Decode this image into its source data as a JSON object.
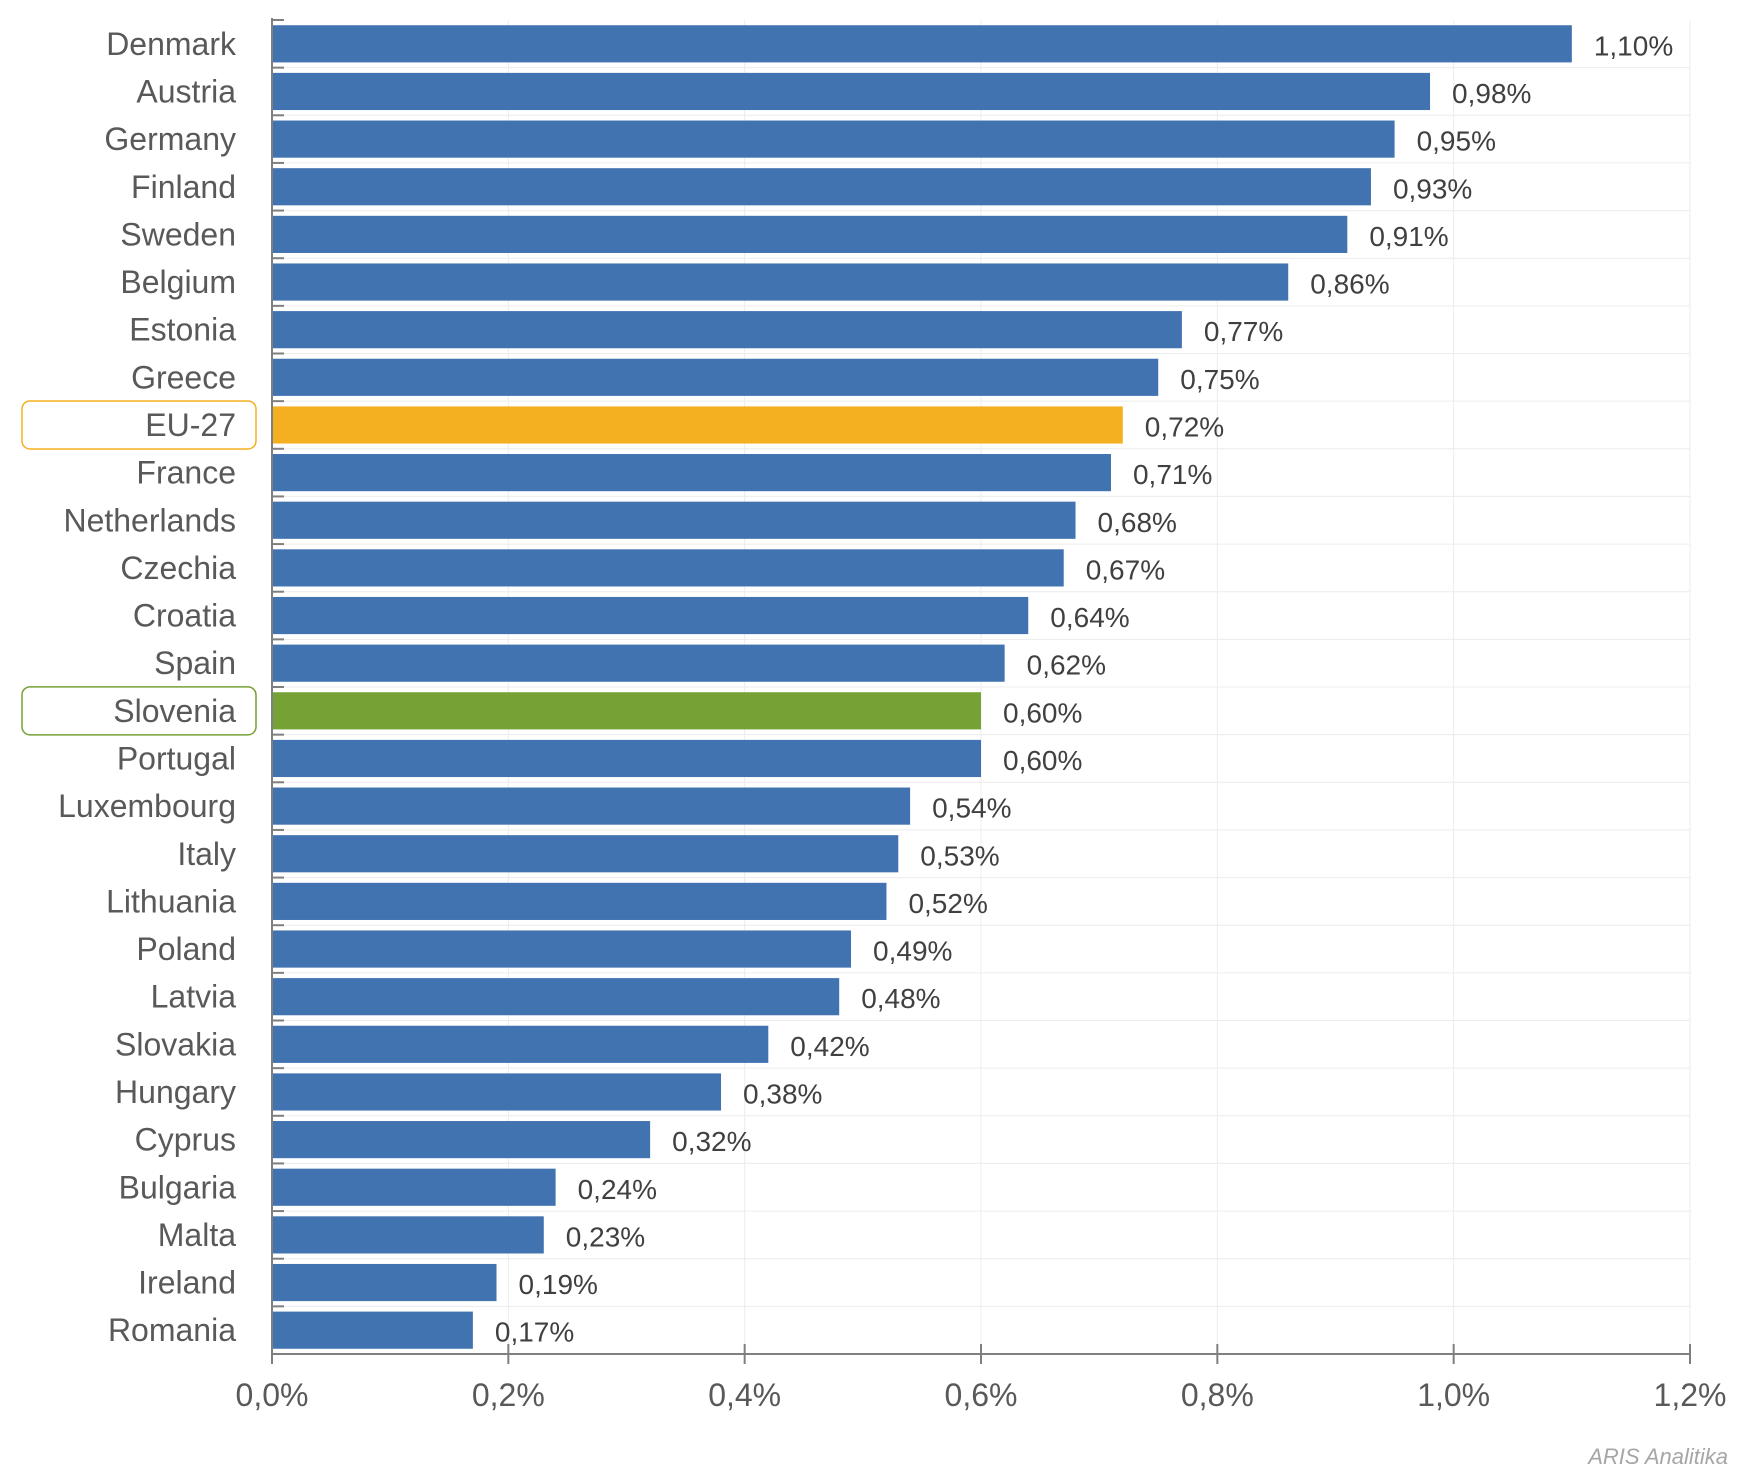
{
  "chart_data": {
    "type": "bar",
    "orientation": "horizontal",
    "categories": [
      "Denmark",
      "Austria",
      "Germany",
      "Finland",
      "Sweden",
      "Belgium",
      "Estonia",
      "Greece",
      "EU-27",
      "France",
      "Netherlands",
      "Czechia",
      "Croatia",
      "Spain",
      "Slovenia",
      "Portugal",
      "Luxembourg",
      "Italy",
      "Lithuania",
      "Poland",
      "Latvia",
      "Slovakia",
      "Hungary",
      "Cyprus",
      "Bulgaria",
      "Malta",
      "Ireland",
      "Romania"
    ],
    "values": [
      1.1,
      0.98,
      0.95,
      0.93,
      0.91,
      0.86,
      0.77,
      0.75,
      0.72,
      0.71,
      0.68,
      0.67,
      0.64,
      0.62,
      0.6,
      0.6,
      0.54,
      0.53,
      0.52,
      0.49,
      0.48,
      0.42,
      0.38,
      0.32,
      0.24,
      0.23,
      0.19,
      0.17
    ],
    "value_labels": [
      "1,10%",
      "0,98%",
      "0,95%",
      "0,93%",
      "0,91%",
      "0,86%",
      "0,77%",
      "0,75%",
      "0,72%",
      "0,71%",
      "0,68%",
      "0,67%",
      "0,64%",
      "0,62%",
      "0,60%",
      "0,60%",
      "0,54%",
      "0,53%",
      "0,52%",
      "0,49%",
      "0,48%",
      "0,42%",
      "0,38%",
      "0,32%",
      "0,24%",
      "0,23%",
      "0,19%",
      "0,17%"
    ],
    "xlim": [
      0,
      1.2
    ],
    "x_ticks": [
      0,
      0.2,
      0.4,
      0.6,
      0.8,
      1.0,
      1.2
    ],
    "x_tick_labels": [
      "0,0%",
      "0,2%",
      "0,4%",
      "0,6%",
      "0,8%",
      "1,0%",
      "1,2%"
    ],
    "grid": true,
    "title": "",
    "xlabel": "",
    "ylabel": "",
    "colors": {
      "default": "#4173b0",
      "EU-27": "#f4b021",
      "Slovenia": "#76a134"
    },
    "highlighted": [
      "EU-27",
      "Slovenia"
    ],
    "source": "ARIS Analitika"
  }
}
